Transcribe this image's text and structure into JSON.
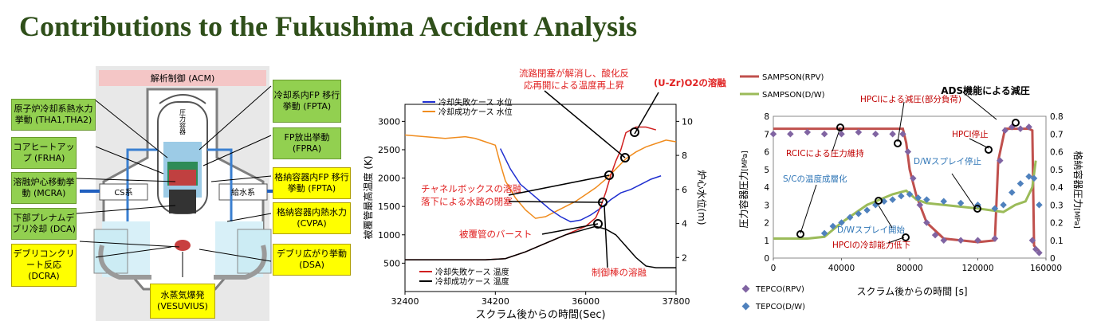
{
  "title": "Contributions to the Fukushima Accident Analysis",
  "diagram": {
    "top_label": "解析制御 (ACM)",
    "cs_label": "CS系",
    "feed_label": "給水系",
    "vessel_label": "圧力容器",
    "green_boxes": [
      {
        "id": "thermal",
        "text": "原子炉冷却系熱水力挙動 (THA1,THA2)"
      },
      {
        "id": "heatup",
        "text": "コアヒートアップ (FRHA)"
      },
      {
        "id": "melt",
        "text": "溶融炉心移動挙動 (MCRA)"
      },
      {
        "id": "plenum",
        "text": "下部プレナムデブリ冷却 (DCA)"
      },
      {
        "id": "fp",
        "text": "冷却系内FP 移行挙動 (FPTA)"
      },
      {
        "id": "fprelease",
        "text": "FP放出挙動 (FPRA)"
      }
    ],
    "yellow_boxes": [
      {
        "id": "debriscore",
        "text": "デブリコンクリート反応 (DCRA)"
      },
      {
        "id": "fpcv",
        "text": "格納容器内FP 移行挙動 (FPTA)"
      },
      {
        "id": "cvthermal",
        "text": "格納容器内熱水力 (CVPA)"
      },
      {
        "id": "spread",
        "text": "デブリ広がり挙動 (DSA)"
      },
      {
        "id": "steam",
        "text": "水蒸気爆発 (VESUVIUS)"
      }
    ]
  },
  "chart1": {
    "type": "line",
    "xlabel": "スクラム後からの時間(Sec)",
    "ylabel_left": "被覆管最高温度 (K)",
    "ylabel_right": "炉心水位(m)",
    "x_ticks": [
      "32400",
      "34200",
      "36000",
      "37800"
    ],
    "y_left_ticks": [
      "500",
      "1000",
      "1500",
      "2000",
      "2500",
      "3000"
    ],
    "y_right_ticks": [
      "2",
      "4",
      "6",
      "8",
      "10"
    ],
    "xlim": [
      32400,
      37800
    ],
    "ylim_left": [
      0,
      3300
    ],
    "ylim_right": [
      0,
      11
    ],
    "legend_top": [
      {
        "name": "冷却失敗ケース 水位",
        "color": "#1f2fd0"
      },
      {
        "name": "冷却成功ケース 水位",
        "color": "#f08c1e"
      }
    ],
    "legend_bottom": [
      {
        "name": "冷却失敗ケース 温度",
        "color": "#d02020"
      },
      {
        "name": "冷却成功ケース 温度",
        "color": "#000000"
      }
    ],
    "annotations": [
      "流路閉塞が解消し、酸化反応再開による温度再上昇",
      "(U-Zr)O2の溶融",
      "チャネルボックスの溶融落下による水路の閉塞",
      "被覆管のバースト",
      "制御棒の溶融"
    ],
    "series": [
      {
        "name": "冷却成功ケース 水位",
        "axis": "right",
        "color": "#f08c1e",
        "x": [
          32400,
          32800,
          33200,
          33600,
          33800,
          34000,
          34200,
          34300,
          34400,
          34600,
          34800,
          35000,
          35200,
          35400,
          35600,
          35800,
          36000,
          36200,
          36400,
          36600,
          36800,
          37000,
          37200,
          37400,
          37600,
          37800
        ],
        "y": [
          9.2,
          9.1,
          9.0,
          9.1,
          9.0,
          8.8,
          8.6,
          7.5,
          6.5,
          5.5,
          4.8,
          4.3,
          4.4,
          4.7,
          5.0,
          5.3,
          5.7,
          6.1,
          6.6,
          7.2,
          7.8,
          8.2,
          8.5,
          8.7,
          8.9,
          8.8
        ]
      },
      {
        "name": "冷却失敗ケース 水位",
        "axis": "right",
        "color": "#1f2fd0",
        "x": [
          34300,
          34500,
          34700,
          34900,
          35100,
          35300,
          35500,
          35700,
          35900,
          36100,
          36300,
          36500,
          36700,
          36900,
          37100,
          37300,
          37500
        ],
        "y": [
          8.4,
          7.2,
          6.3,
          5.8,
          5.3,
          4.8,
          4.4,
          4.1,
          4.2,
          4.5,
          4.9,
          5.4,
          5.8,
          6.0,
          6.3,
          6.6,
          6.8
        ]
      },
      {
        "name": "冷却失敗ケース 温度",
        "axis": "left",
        "color": "#d02020",
        "x": [
          32400,
          34000,
          34400,
          34800,
          35200,
          35600,
          36000,
          36200,
          36300,
          36400,
          36500,
          36600,
          36700,
          36800,
          37000,
          37200,
          37400
        ],
        "y": [
          560,
          560,
          580,
          700,
          850,
          1000,
          1150,
          1300,
          1500,
          1750,
          2050,
          2300,
          2500,
          2800,
          2900,
          2900,
          2850
        ]
      },
      {
        "name": "冷却成功ケース 温度",
        "axis": "left",
        "color": "#000000",
        "x": [
          32400,
          34000,
          34400,
          34800,
          35200,
          35600,
          36000,
          36200,
          36400,
          36600,
          36800,
          37000,
          37200,
          37400,
          37800
        ],
        "y": [
          560,
          560,
          580,
          700,
          850,
          1000,
          1100,
          1150,
          1100,
          1000,
          800,
          600,
          450,
          420,
          420
        ]
      }
    ]
  },
  "chart2": {
    "type": "line",
    "xlabel": "スクラム後からの時間",
    "xunit": "[s]",
    "ylabel_left": "圧力容器圧力",
    "ylabel_left_unit": "[MPa]",
    "ylabel_right": "格納容器圧力",
    "ylabel_right_unit": "[MPa]",
    "x_ticks": [
      "0",
      "40000",
      "80000",
      "120000",
      "160000"
    ],
    "y_left_ticks": [
      "0",
      "1",
      "2",
      "3",
      "4",
      "5",
      "6",
      "7",
      "8"
    ],
    "y_right_ticks": [
      "0",
      "0.1",
      "0.2",
      "0.3",
      "0.4",
      "0.5",
      "0.6",
      "0.7",
      "0.8"
    ],
    "xlim": [
      0,
      160000
    ],
    "ylim_left": [
      0,
      8
    ],
    "ylim_right": [
      0,
      0.8
    ],
    "legend": [
      {
        "name": "SAMPSON(RPV)",
        "color": "#c0504d"
      },
      {
        "name": "SAMPSON(D/W)",
        "color": "#9bbb59"
      },
      {
        "name": "TEPCO(RPV)",
        "color": "#8064a2"
      },
      {
        "name": "TEPCO(D/W)",
        "color": "#4f81bd"
      }
    ],
    "annotations": [
      {
        "text": "ADS機能による減圧",
        "color": "#000000"
      },
      {
        "text": "HPCIによる減圧(部分負荷)",
        "color": "#c00000"
      },
      {
        "text": "HPCI停止",
        "color": "#c00000"
      },
      {
        "text": "RCICによる圧力維持",
        "color": "#c00000"
      },
      {
        "text": "D/Wスプレイ停止",
        "color": "#2e75b6"
      },
      {
        "text": "S/Cの温度成層化",
        "color": "#2e75b6"
      },
      {
        "text": "D/Wスプレイ開始",
        "color": "#2e75b6"
      },
      {
        "text": "HPCIの冷却能力低下",
        "color": "#c00000"
      }
    ],
    "series": [
      {
        "name": "SAMPSON(RPV)",
        "axis": "left",
        "color": "#c0504d",
        "x": [
          0,
          20000,
          40000,
          60000,
          76000,
          78000,
          80000,
          84000,
          90000,
          100000,
          110000,
          120000,
          130000,
          132000,
          136000,
          140000,
          150000,
          152000,
          153000,
          156000
        ],
        "y": [
          7.3,
          7.3,
          7.3,
          7.3,
          7.3,
          6.5,
          5.0,
          3.5,
          2.0,
          1.1,
          1.0,
          0.9,
          1.0,
          5.5,
          7.3,
          7.3,
          7.3,
          7.2,
          0.7,
          0.4
        ]
      },
      {
        "name": "SAMPSON(D/W)",
        "axis": "right",
        "color": "#9bbb59",
        "x": [
          0,
          20000,
          30000,
          40000,
          55000,
          70000,
          78000,
          84000,
          90000,
          100000,
          120000,
          135000,
          142000,
          148000,
          152000,
          154000
        ],
        "y": [
          0.11,
          0.11,
          0.12,
          0.2,
          0.3,
          0.36,
          0.38,
          0.33,
          0.31,
          0.3,
          0.28,
          0.26,
          0.3,
          0.32,
          0.4,
          0.55
        ]
      },
      {
        "name": "TEPCO(RPV)",
        "axis": "left",
        "color": "#8064a2",
        "x": [
          0,
          10000,
          20000,
          30000,
          40000,
          50000,
          60000,
          70000,
          76000,
          79000,
          82000,
          86000,
          90000,
          95000,
          100000,
          110000,
          120000,
          130000,
          133000,
          136000,
          140000,
          145000,
          150000,
          152000,
          154000,
          156000
        ],
        "y": [
          7.0,
          7.0,
          7.1,
          7.0,
          7.0,
          7.1,
          7.0,
          7.0,
          7.0,
          6.0,
          4.5,
          3.0,
          2.0,
          1.3,
          1.0,
          1.0,
          1.0,
          1.1,
          5.5,
          7.2,
          7.4,
          7.3,
          7.4,
          1.0,
          0.5,
          0.3
        ]
      },
      {
        "name": "TEPCO(D/W)",
        "axis": "right",
        "color": "#4f81bd",
        "x": [
          30000,
          35000,
          40000,
          45000,
          50000,
          55000,
          60000,
          65000,
          70000,
          75000,
          80000,
          85000,
          90000,
          100000,
          110000,
          120000,
          130000,
          135000,
          140000,
          145000,
          150000,
          153000,
          156000
        ],
        "y": [
          0.14,
          0.18,
          0.2,
          0.23,
          0.25,
          0.27,
          0.3,
          0.32,
          0.33,
          0.35,
          0.36,
          0.34,
          0.33,
          0.32,
          0.31,
          0.3,
          0.28,
          0.3,
          0.37,
          0.42,
          0.46,
          0.45,
          0.3
        ]
      }
    ]
  }
}
